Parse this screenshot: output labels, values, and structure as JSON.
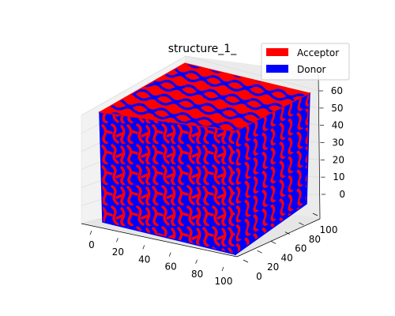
{
  "chart_data": {
    "type": "voxel-3d",
    "title": "structure_1_",
    "series": [
      {
        "name": "Acceptor",
        "color": "#ff0000"
      },
      {
        "name": "Donor",
        "color": "#0000ff"
      }
    ],
    "x_ticks": [
      "0",
      "20",
      "40",
      "60",
      "80",
      "100"
    ],
    "y_ticks": [
      "0",
      "20",
      "40",
      "60",
      "80",
      "100"
    ],
    "z_ticks": [
      "0",
      "10",
      "20",
      "30",
      "40",
      "50",
      "60"
    ],
    "x_range": [
      0,
      100
    ],
    "y_range": [
      0,
      100
    ],
    "z_range": [
      0,
      60
    ],
    "legend_position": "top-right",
    "grid": true
  }
}
